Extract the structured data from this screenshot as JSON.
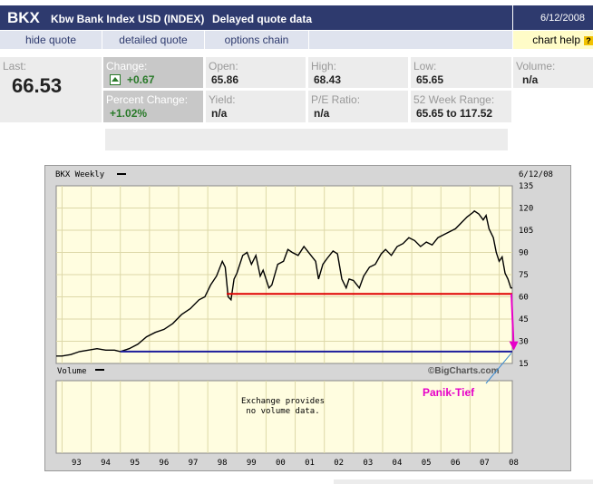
{
  "header": {
    "symbol": "BKX",
    "name": "Kbw Bank Index USD (INDEX)",
    "delay": "Delayed quote data",
    "date": "6/12/2008"
  },
  "nav": {
    "hide_quote": "hide quote",
    "detailed_quote": "detailed quote",
    "options_chain": "options chain",
    "chart_help": "chart help"
  },
  "quote": {
    "last_label": "Last:",
    "last": "66.53",
    "change_label": "Change:",
    "change": "+0.67",
    "pct_label": "Percent Change:",
    "pct": "+1.02%",
    "open_label": "Open:",
    "open": "65.86",
    "yield_label": "Yield:",
    "yield": "n/a",
    "high_label": "High:",
    "high": "68.43",
    "pe_label": "P/E Ratio:",
    "pe": "n/a",
    "low_label": "Low:",
    "low": "65.65",
    "range_label": "52 Week Range:",
    "range": "65.65 to 117.52",
    "volume_label": "Volume:",
    "volume": "n/a"
  },
  "chart": {
    "title": "BKX Weekly",
    "date": "6/12/08",
    "volume_label": "Volume",
    "credit": "©BigCharts.com",
    "volume_msg_1": "Exchange provides",
    "volume_msg_2": "no volume data.",
    "annotation": "Panik-Tief",
    "colors": {
      "price": "#000000",
      "red_line": "#e00000",
      "blue_line": "#1c1c9c",
      "annotation": "#e600c8",
      "plot_bg": "#fffde0"
    }
  },
  "chart_data": {
    "type": "line",
    "title": "BKX Weekly",
    "x_ticks": [
      "93",
      "94",
      "95",
      "96",
      "97",
      "98",
      "99",
      "00",
      "01",
      "02",
      "03",
      "04",
      "05",
      "06",
      "07",
      "08"
    ],
    "y_ticks": [
      135,
      120,
      105,
      90,
      75,
      60,
      45,
      30,
      15
    ],
    "ylim": [
      15,
      135
    ],
    "xlim": [
      1992.8,
      2008.45
    ],
    "grid": true,
    "series": [
      {
        "values": [
          [
            1992.8,
            20
          ],
          [
            1993.0,
            20
          ],
          [
            1993.3,
            21
          ],
          [
            1993.6,
            23
          ],
          [
            1993.9,
            24
          ],
          [
            1994.2,
            25
          ],
          [
            1994.5,
            24
          ],
          [
            1994.8,
            24
          ],
          [
            1995.0,
            23
          ],
          [
            1995.3,
            25
          ],
          [
            1995.6,
            28
          ],
          [
            1995.9,
            33
          ],
          [
            1996.2,
            36
          ],
          [
            1996.5,
            38
          ],
          [
            1996.8,
            42
          ],
          [
            1997.1,
            48
          ],
          [
            1997.4,
            52
          ],
          [
            1997.7,
            58
          ],
          [
            1997.9,
            60
          ],
          [
            1998.1,
            68
          ],
          [
            1998.3,
            74
          ],
          [
            1998.5,
            84
          ],
          [
            1998.6,
            80
          ],
          [
            1998.7,
            60
          ],
          [
            1998.8,
            58
          ],
          [
            1998.9,
            72
          ],
          [
            1999.0,
            76
          ],
          [
            1999.2,
            88
          ],
          [
            1999.35,
            90
          ],
          [
            1999.5,
            82
          ],
          [
            1999.65,
            88
          ],
          [
            1999.8,
            74
          ],
          [
            1999.9,
            78
          ],
          [
            2000.1,
            66
          ],
          [
            2000.2,
            68
          ],
          [
            2000.4,
            82
          ],
          [
            2000.6,
            84
          ],
          [
            2000.75,
            92
          ],
          [
            2000.9,
            90
          ],
          [
            2001.1,
            88
          ],
          [
            2001.3,
            94
          ],
          [
            2001.5,
            89
          ],
          [
            2001.7,
            84
          ],
          [
            2001.8,
            72
          ],
          [
            2001.95,
            82
          ],
          [
            2002.1,
            86
          ],
          [
            2002.3,
            91
          ],
          [
            2002.45,
            89
          ],
          [
            2002.6,
            72
          ],
          [
            2002.75,
            66
          ],
          [
            2002.85,
            72
          ],
          [
            2003.0,
            71
          ],
          [
            2003.2,
            66
          ],
          [
            2003.35,
            74
          ],
          [
            2003.55,
            80
          ],
          [
            2003.75,
            82
          ],
          [
            2003.95,
            89
          ],
          [
            2004.1,
            92
          ],
          [
            2004.3,
            88
          ],
          [
            2004.5,
            94
          ],
          [
            2004.7,
            96
          ],
          [
            2004.9,
            100
          ],
          [
            2005.1,
            98
          ],
          [
            2005.3,
            94
          ],
          [
            2005.5,
            97
          ],
          [
            2005.7,
            95
          ],
          [
            2005.9,
            100
          ],
          [
            2006.1,
            102
          ],
          [
            2006.3,
            104
          ],
          [
            2006.5,
            106
          ],
          [
            2006.7,
            110
          ],
          [
            2006.9,
            114
          ],
          [
            2007.1,
            117
          ],
          [
            2007.15,
            118
          ],
          [
            2007.3,
            116
          ],
          [
            2007.45,
            112
          ],
          [
            2007.55,
            115
          ],
          [
            2007.65,
            106
          ],
          [
            2007.8,
            100
          ],
          [
            2007.9,
            90
          ],
          [
            2008.0,
            84
          ],
          [
            2008.1,
            87
          ],
          [
            2008.2,
            76
          ],
          [
            2008.3,
            72
          ],
          [
            2008.4,
            66
          ],
          [
            2008.45,
            66
          ]
        ]
      }
    ],
    "horizontal_lines": [
      {
        "y": 62,
        "x_from": 1998.65,
        "x_to": 2008.45,
        "color": "red"
      },
      {
        "y": 23,
        "x_from": 1995.0,
        "x_to": 2008.45,
        "color": "blue"
      }
    ],
    "annotations": [
      {
        "text": "Panik-Tief"
      }
    ]
  }
}
